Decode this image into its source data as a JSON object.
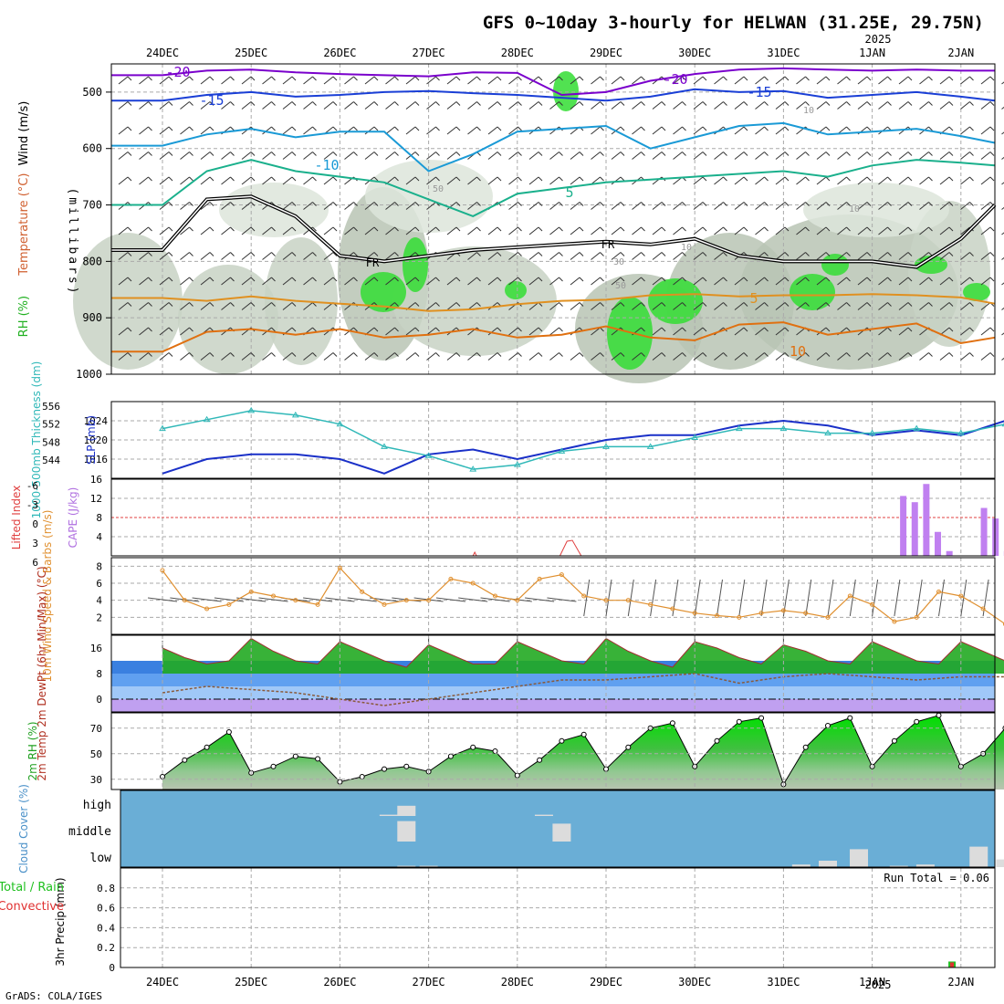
{
  "header": {
    "title": "GFS 0~10day 3-hourly for HELWAN (31.25E, 29.75N)",
    "year_label": "2025",
    "credit": "GrADS: COLA/IGES"
  },
  "colors": {
    "rh_green": "#22cc22",
    "rh_gray": "#aab4a6",
    "temp_purple": "#7a00cc",
    "temp_blue": "#1a3fd6",
    "temp_cyan": "#1a9ad6",
    "temp_teal": "#1ab08c",
    "temp_orange": "#e09020",
    "slp_blue": "#1a30c8",
    "thickness_cyan": "#30b8b8",
    "cape_violet": "#c080f0",
    "lifted_red": "#e04040",
    "wind_orange": "#e09030",
    "cloud_blue": "#6aaed6"
  },
  "chart_data": [
    {
      "type": "line",
      "panel": "upper-air",
      "ylabel_parts": [
        "Wind (m/s)",
        "Temperature (°C)",
        "RH (%)"
      ],
      "yunit": "(millibars)",
      "yticks": [
        500,
        600,
        700,
        800,
        900,
        1000
      ],
      "ylim": [
        450,
        1000
      ],
      "contour_labels": [
        "-20",
        "-15",
        "-10",
        "-5",
        "5",
        "10",
        "FR"
      ],
      "rh_labels": [
        "10",
        "30",
        "50"
      ],
      "x_date_labels": [
        "24DEC",
        "25DEC",
        "26DEC",
        "27DEC",
        "28DEC",
        "29DEC",
        "30DEC",
        "31DEC",
        "1JAN",
        "2JAN"
      ],
      "series": [
        {
          "name": "-20",
          "x": [
            0.0,
            0.5,
            1.0,
            1.5,
            2.0,
            2.5,
            3.0,
            3.5,
            4.0,
            4.5,
            5.0,
            5.5,
            6.0,
            6.5,
            7.0,
            7.5,
            8.0,
            8.5,
            9.0,
            9.5
          ],
          "values": [
            470,
            462,
            460,
            465,
            468,
            470,
            472,
            465,
            466,
            505,
            500,
            480,
            468,
            460,
            458,
            460,
            462,
            460,
            462,
            462
          ]
        },
        {
          "name": "-15",
          "x": [
            0.0,
            0.5,
            1.0,
            1.5,
            2.0,
            2.5,
            3.0,
            3.5,
            4.0,
            4.5,
            5.0,
            5.5,
            6.0,
            6.5,
            7.0,
            7.5,
            8.0,
            8.5,
            9.0,
            9.5
          ],
          "values": [
            515,
            505,
            500,
            508,
            505,
            500,
            498,
            502,
            505,
            510,
            515,
            508,
            495,
            500,
            498,
            510,
            505,
            500,
            508,
            515
          ]
        },
        {
          "name": "-10",
          "x": [
            0.0,
            0.5,
            1.0,
            1.5,
            2.0,
            2.5,
            3.0,
            3.5,
            4.0,
            4.5,
            5.0,
            5.5,
            6.0,
            6.5,
            7.0,
            7.5,
            8.0,
            8.5,
            9.0,
            9.5
          ],
          "values": [
            595,
            575,
            565,
            580,
            570,
            570,
            640,
            610,
            570,
            565,
            560,
            600,
            580,
            560,
            555,
            575,
            570,
            565,
            578,
            590
          ]
        },
        {
          "name": "-5",
          "x": [
            0.0,
            0.5,
            1.0,
            1.5,
            2.0,
            2.5,
            3.0,
            3.5,
            4.0,
            4.5,
            5.0,
            5.5,
            6.0,
            6.5,
            7.0,
            7.5,
            8.0,
            8.5,
            9.0,
            9.5
          ],
          "values": [
            700,
            640,
            620,
            640,
            650,
            660,
            690,
            720,
            680,
            670,
            660,
            655,
            650,
            645,
            640,
            650,
            630,
            620,
            625,
            630
          ]
        },
        {
          "name": "FR",
          "x": [
            0.0,
            0.5,
            1.0,
            1.5,
            2.0,
            2.5,
            3.0,
            3.5,
            4.0,
            4.5,
            5.0,
            5.5,
            6.0,
            6.5,
            7.0,
            7.5,
            8.0,
            8.5,
            9.0,
            9.5
          ],
          "values": [
            780,
            690,
            685,
            720,
            790,
            800,
            790,
            780,
            775,
            770,
            765,
            770,
            760,
            790,
            800,
            800,
            800,
            810,
            760,
            700
          ]
        },
        {
          "name": "5",
          "x": [
            0.0,
            0.5,
            1.0,
            1.5,
            2.0,
            2.5,
            3.0,
            3.5,
            4.0,
            4.5,
            5.0,
            5.5,
            6.0,
            6.5,
            7.0,
            7.5,
            8.0,
            8.5,
            9.0,
            9.5
          ],
          "values": [
            865,
            870,
            862,
            870,
            875,
            880,
            888,
            885,
            876,
            870,
            868,
            860,
            858,
            862,
            860,
            860,
            858,
            860,
            864,
            875
          ]
        },
        {
          "name": "10",
          "x": [
            0.0,
            0.5,
            1.0,
            1.5,
            2.0,
            2.5,
            3.0,
            3.5,
            4.0,
            4.5,
            5.0,
            5.5,
            6.0,
            6.5,
            7.0,
            7.5,
            8.0,
            8.5,
            9.0,
            9.5
          ],
          "values": [
            960,
            925,
            920,
            930,
            920,
            935,
            930,
            920,
            935,
            930,
            915,
            935,
            940,
            912,
            908,
            930,
            920,
            910,
            945,
            935
          ]
        }
      ]
    },
    {
      "type": "line",
      "panel": "thickness-slp",
      "ylabel_left": "1000-500mb Thickness (dm)",
      "ylabel_right": "SLP (mb)",
      "yticks_left": [
        544,
        548,
        552,
        556
      ],
      "ylim_left": [
        540,
        557
      ],
      "yticks_right": [
        1016,
        1020,
        1024
      ],
      "ylim_right": [
        1012,
        1028
      ],
      "series": [
        {
          "name": "SLP",
          "x": [
            0.0,
            0.5,
            1.0,
            1.5,
            2.0,
            2.5,
            3.0,
            3.5,
            4.0,
            4.5,
            5.0,
            5.5,
            6.0,
            6.5,
            7.0,
            7.5,
            8.0,
            8.5,
            9.0,
            9.5
          ],
          "values": [
            1013,
            1016,
            1017,
            1017,
            1016,
            1013,
            1017,
            1018,
            1016,
            1018,
            1020,
            1021,
            1021,
            1023,
            1024,
            1023,
            1021,
            1022,
            1021,
            1024
          ]
        },
        {
          "name": "Thickness",
          "x": [
            0.0,
            0.5,
            1.0,
            1.5,
            2.0,
            2.5,
            3.0,
            3.5,
            4.0,
            4.5,
            5.0,
            5.5,
            6.0,
            6.5,
            7.0,
            7.5,
            8.0,
            8.5,
            9.0,
            9.5
          ],
          "values": [
            551,
            553,
            555,
            554,
            552,
            547,
            545,
            542,
            543,
            546,
            547,
            547,
            549,
            551,
            551,
            550,
            550,
            551,
            550,
            552
          ]
        }
      ]
    },
    {
      "type": "bar",
      "panel": "cape-lifted-index",
      "ylabel_left": "Lifted Index",
      "ylabel_right": "CAPE (J/kg)",
      "yticks_left": [
        "-6",
        "-3",
        "0",
        "3",
        "6"
      ],
      "yticks_right": [
        4,
        8,
        12,
        16
      ],
      "ylim_right": [
        0,
        16
      ],
      "x": [
        8.35,
        8.48,
        8.61,
        8.74,
        8.87,
        9.26,
        9.39,
        9.52,
        9.65,
        9.92
      ],
      "values": [
        12.5,
        11.2,
        15.0,
        5.0,
        1.0,
        10.0,
        7.8,
        1.0,
        1.0,
        7.5
      ]
    },
    {
      "type": "line",
      "panel": "10m-wind",
      "ylabel": "10m Wind Speed & Barbs (m/s)",
      "yticks": [
        2,
        4,
        6,
        8
      ],
      "ylim": [
        0,
        9
      ],
      "x": [
        0.0,
        0.25,
        0.5,
        0.75,
        1.0,
        1.25,
        1.5,
        1.75,
        2.0,
        2.25,
        2.5,
        2.75,
        3.0,
        3.25,
        3.5,
        3.75,
        4.0,
        4.25,
        4.5,
        4.75,
        5.0,
        5.25,
        5.5,
        5.75,
        6.0,
        6.25,
        6.5,
        6.75,
        7.0,
        7.25,
        7.5,
        7.75,
        8.0,
        8.25,
        8.5,
        8.75,
        9.0,
        9.25,
        9.5,
        9.75,
        10.0
      ],
      "values": [
        7.5,
        4.0,
        3.0,
        3.5,
        5.0,
        4.5,
        4.0,
        3.5,
        7.8,
        5.0,
        3.5,
        4.0,
        4.0,
        6.5,
        6.0,
        4.5,
        4.0,
        6.5,
        7.0,
        4.5,
        4.0,
        4.0,
        3.5,
        3.0,
        2.5,
        2.2,
        2.0,
        2.5,
        2.8,
        2.5,
        2.0,
        4.5,
        3.5,
        1.5,
        2.0,
        5.0,
        4.5,
        3.0,
        1.2,
        3.5,
        3.0
      ]
    },
    {
      "type": "area",
      "panel": "2m-temp",
      "ylabel": "2m Temp 2m DewPt (6hr Min/Max) (°C)",
      "yticks": [
        0,
        8,
        16
      ],
      "ylim": [
        -4,
        20
      ],
      "series": [
        {
          "name": "2m Temp",
          "x": [
            0.0,
            0.25,
            0.5,
            0.75,
            1.0,
            1.25,
            1.5,
            1.75,
            2.0,
            2.25,
            2.5,
            2.75,
            3.0,
            3.25,
            3.5,
            3.75,
            4.0,
            4.25,
            4.5,
            4.75,
            5.0,
            5.25,
            5.5,
            5.75,
            6.0,
            6.25,
            6.5,
            6.75,
            7.0,
            7.25,
            7.5,
            7.75,
            8.0,
            8.25,
            8.5,
            8.75,
            9.0,
            9.25,
            9.5,
            9.75,
            10.0
          ],
          "values": [
            16,
            13,
            11,
            12,
            19,
            15,
            12,
            11,
            18,
            15,
            12,
            10,
            17,
            14,
            11,
            11,
            18,
            15,
            12,
            11,
            19,
            15,
            12,
            10,
            18,
            16,
            13,
            11,
            17,
            15,
            12,
            11,
            18,
            15,
            12,
            11,
            18,
            15,
            12,
            11,
            14
          ]
        },
        {
          "name": "2m DewPt",
          "x": [
            0.0,
            0.5,
            1.0,
            1.5,
            2.0,
            2.5,
            3.0,
            3.5,
            4.0,
            4.5,
            5.0,
            5.5,
            6.0,
            6.5,
            7.0,
            7.5,
            8.0,
            8.5,
            9.0,
            9.5,
            10.0
          ],
          "values": [
            2,
            4,
            3,
            2,
            0,
            -2,
            0,
            2,
            4,
            6,
            6,
            7,
            8,
            5,
            7,
            8,
            7,
            6,
            7,
            7,
            8
          ]
        }
      ]
    },
    {
      "type": "area",
      "panel": "2m-rh",
      "ylabel": "2m RH (%)",
      "yticks": [
        30,
        50,
        70
      ],
      "ylim": [
        22,
        82
      ],
      "x": [
        0.0,
        0.25,
        0.5,
        0.75,
        1.0,
        1.25,
        1.5,
        1.75,
        2.0,
        2.25,
        2.5,
        2.75,
        3.0,
        3.25,
        3.5,
        3.75,
        4.0,
        4.25,
        4.5,
        4.75,
        5.0,
        5.25,
        5.5,
        5.75,
        6.0,
        6.25,
        6.5,
        6.75,
        7.0,
        7.25,
        7.5,
        7.75,
        8.0,
        8.25,
        8.5,
        8.75,
        9.0,
        9.25,
        9.5,
        9.75,
        10.0
      ],
      "values": [
        32,
        45,
        55,
        67,
        35,
        40,
        48,
        46,
        28,
        32,
        38,
        40,
        36,
        48,
        55,
        52,
        33,
        45,
        60,
        65,
        38,
        55,
        70,
        74,
        40,
        60,
        75,
        78,
        26,
        55,
        72,
        78,
        40,
        60,
        75,
        80,
        40,
        50,
        70,
        80,
        72
      ]
    },
    {
      "type": "bar",
      "panel": "cloud-cover",
      "ylabel": "Cloud Cover (%)",
      "ytick_labels": [
        "high",
        "middle",
        "low"
      ],
      "layers": [
        {
          "name": "high",
          "x": [
            2.55,
            2.75,
            4.3,
            9.9
          ],
          "values": [
            5,
            40,
            5,
            10
          ]
        },
        {
          "name": "middle",
          "x": [
            2.75,
            4.5
          ],
          "values": [
            80,
            70
          ]
        },
        {
          "name": "low",
          "x": [
            2.75,
            3.0,
            7.2,
            7.5,
            7.85,
            8.3,
            8.6,
            9.2,
            9.5,
            9.9
          ],
          "values": [
            5,
            5,
            10,
            25,
            70,
            5,
            10,
            80,
            30,
            50
          ]
        }
      ]
    },
    {
      "type": "bar",
      "panel": "precip",
      "ylabel": "3hr Precip (mm)",
      "legend_parts": [
        "Total / Rain",
        "Convective"
      ],
      "run_total": "Run Total = 0.06",
      "yticks": [
        0,
        0.2,
        0.4,
        0.6,
        0.8
      ],
      "ylim": [
        0,
        1.0
      ],
      "x": [
        8.9
      ],
      "values": [
        0.06
      ]
    }
  ]
}
